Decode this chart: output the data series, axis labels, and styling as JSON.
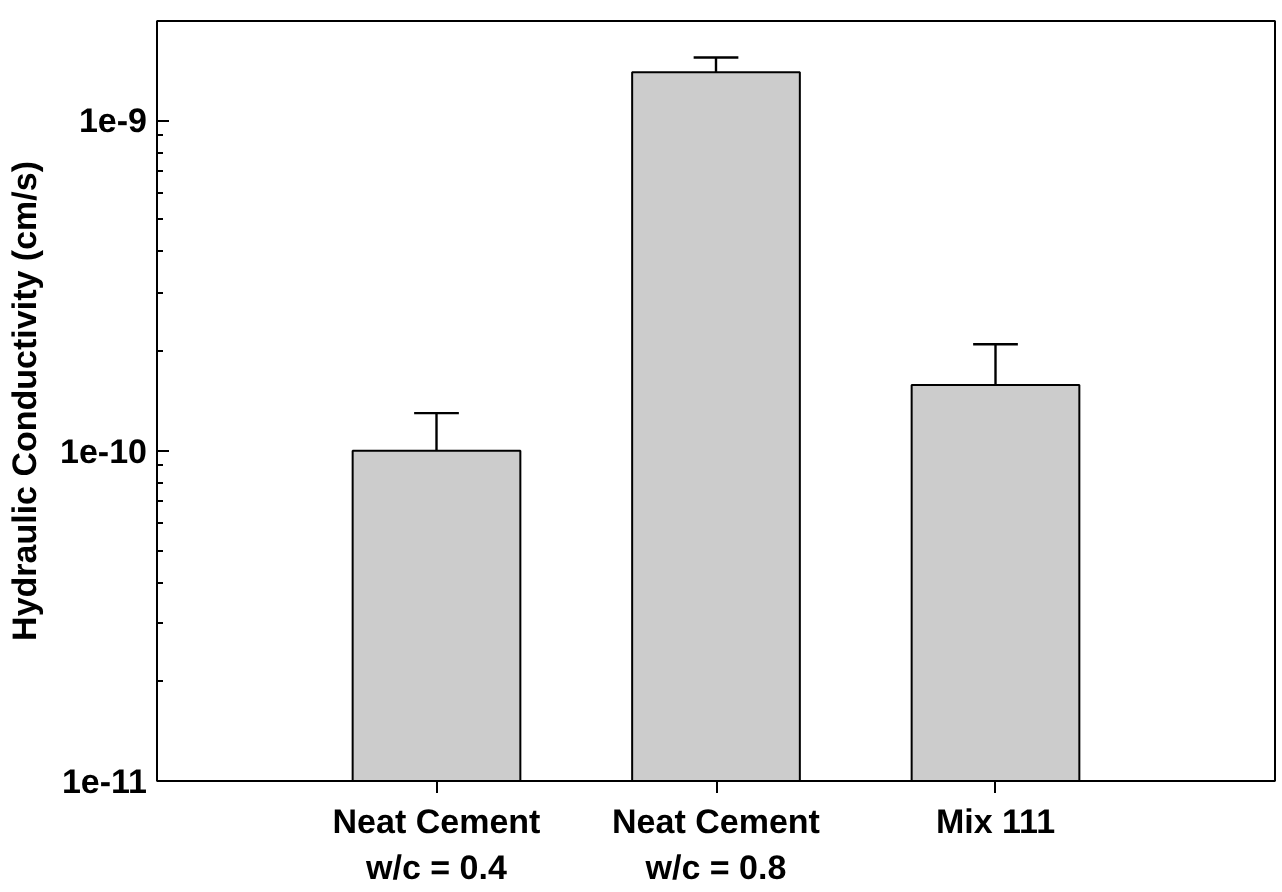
{
  "chart_data": {
    "type": "bar",
    "ylabel": "Hydraulic Conductivity (cm/s)",
    "categories": [
      "Neat Cement\nw/c = 0.4",
      "Neat Cement\nw/c = 0.8",
      "Mix 111"
    ],
    "values": [
      1e-10,
      1.4e-09,
      1.58e-10
    ],
    "errors": [
      [
        1e-10,
        1.3e-10
      ],
      [
        1.4e-09,
        1.55e-09
      ],
      [
        1.58e-10,
        2.1e-10
      ]
    ],
    "color": "#cccccc",
    "log": true,
    "ylim": [
      1e-11,
      2e-09
    ],
    "yticks": [
      {
        "value": 1e-11,
        "label": "1e-11"
      },
      {
        "value": 1e-10,
        "label": "1e-10"
      },
      {
        "value": 1e-09,
        "label": "1e-9"
      }
    ],
    "grid": false
  }
}
